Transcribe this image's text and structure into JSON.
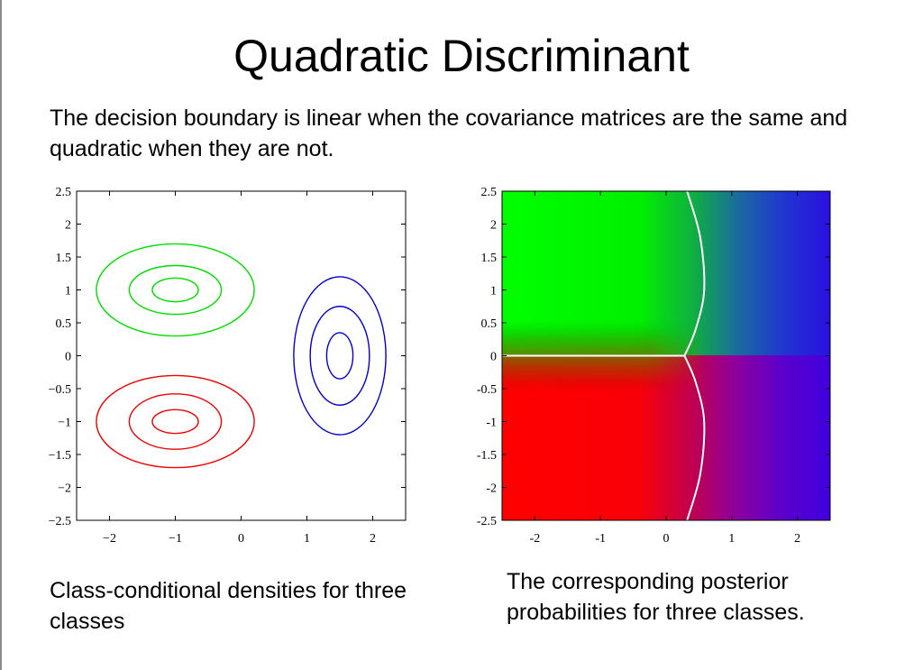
{
  "slide": {
    "title": "Quadratic Discriminant",
    "intro": "The decision boundary is linear when the covariance matrices are the same and quadratic when they are not.",
    "caption_left": "Class-conditional densities for three classes",
    "caption_right": "The corresponding posterior probabilities for three classes."
  },
  "chart_data": [
    {
      "type": "contour",
      "xlim": [
        -2.5,
        2.5
      ],
      "ylim": [
        -2.5,
        2.5
      ],
      "x_ticks": [
        -2,
        -1,
        0,
        1,
        2
      ],
      "x_tick_labels": [
        "−2",
        "−1",
        "0",
        "1",
        "2"
      ],
      "y_ticks": [
        2.5,
        2,
        1.5,
        1,
        0.5,
        0,
        -0.5,
        -1,
        -1.5,
        -2,
        -2.5
      ],
      "y_tick_labels": [
        "2.5",
        "2",
        "1.5",
        "1",
        "0.5",
        "0",
        "−0.5",
        "−1",
        "−1.5",
        "−2",
        "−2.5"
      ],
      "series": [
        {
          "color": "#00dd00",
          "center": [
            -1,
            1
          ],
          "radii_x": [
            1.2,
            0.7,
            0.35
          ],
          "radii_y": [
            0.7,
            0.37,
            0.18
          ]
        },
        {
          "color": "#ee0000",
          "center": [
            -1,
            -1
          ],
          "radii_x": [
            1.2,
            0.7,
            0.35
          ],
          "radii_y": [
            0.7,
            0.42,
            0.18
          ]
        },
        {
          "color": "#0000cc",
          "center": [
            1.5,
            0
          ],
          "radii_x": [
            0.7,
            0.45,
            0.2
          ],
          "radii_y": [
            1.2,
            0.75,
            0.35
          ]
        }
      ]
    },
    {
      "type": "heatmap",
      "xlim": [
        -2.5,
        2.5
      ],
      "ylim": [
        -2.5,
        2.5
      ],
      "x_ticks": [
        -2,
        -1,
        0,
        1,
        2
      ],
      "x_tick_labels": [
        "-2",
        "-1",
        "0",
        "1",
        "2"
      ],
      "y_ticks": [
        2.5,
        2,
        1.5,
        1,
        0.5,
        0,
        -0.5,
        -1,
        -1.5,
        -2,
        -2.5
      ],
      "y_tick_labels": [
        "2.5",
        "2",
        "1.5",
        "1",
        "0.5",
        "0",
        "-0.5",
        "-1",
        "-1.5",
        "-2",
        "-2.5"
      ],
      "class_colors": [
        "#00ff00",
        "#ff0000",
        "#3300ee"
      ],
      "boundary_color": "#ffffff",
      "boundaries": [
        [
          [
            -2.5,
            0
          ],
          [
            0.28,
            0
          ]
        ],
        [
          [
            0.28,
            0
          ],
          [
            0.45,
            0.4
          ],
          [
            0.58,
            1.0
          ],
          [
            0.52,
            1.8
          ],
          [
            0.32,
            2.5
          ]
        ],
        [
          [
            0.28,
            0
          ],
          [
            0.45,
            -0.4
          ],
          [
            0.58,
            -1.0
          ],
          [
            0.52,
            -1.8
          ],
          [
            0.32,
            -2.5
          ]
        ]
      ]
    }
  ]
}
